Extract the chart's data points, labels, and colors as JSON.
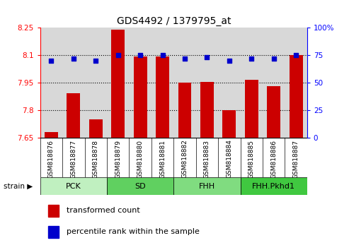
{
  "title": "GDS4492 / 1379795_at",
  "samples": [
    "GSM818876",
    "GSM818877",
    "GSM818878",
    "GSM818879",
    "GSM818880",
    "GSM818881",
    "GSM818882",
    "GSM818883",
    "GSM818884",
    "GSM818885",
    "GSM818886",
    "GSM818887"
  ],
  "transformed_counts": [
    7.68,
    7.89,
    7.75,
    8.24,
    8.09,
    8.09,
    7.95,
    7.955,
    7.8,
    7.965,
    7.93,
    8.1
  ],
  "percentile_ranks": [
    70,
    72,
    70,
    75,
    75,
    75,
    72,
    73,
    70,
    72,
    72,
    75
  ],
  "strain_groups": [
    {
      "label": "PCK",
      "start": 0,
      "end": 3,
      "color": "#c0f0c0"
    },
    {
      "label": "SD",
      "start": 3,
      "end": 6,
      "color": "#60d060"
    },
    {
      "label": "FHH",
      "start": 6,
      "end": 9,
      "color": "#80dc80"
    },
    {
      "label": "FHH.Pkhd1",
      "start": 9,
      "end": 12,
      "color": "#40c840"
    }
  ],
  "ylim_left": [
    7.65,
    8.25
  ],
  "ylim_right": [
    0,
    100
  ],
  "yticks_left": [
    7.65,
    7.8,
    7.95,
    8.1,
    8.25
  ],
  "yticks_left_labels": [
    "7.65",
    "7.8",
    "7.95",
    "8.1",
    "8.25"
  ],
  "yticks_right": [
    0,
    25,
    50,
    75,
    100
  ],
  "yticks_right_labels": [
    "0",
    "25",
    "50",
    "75",
    "100%"
  ],
  "bar_color": "#cc0000",
  "dot_color": "#0000cc",
  "bar_width": 0.6,
  "background_color": "#ffffff",
  "plot_bg_color": "#d8d8d8",
  "tick_bg_color": "#c8c8c8",
  "legend_items": [
    "transformed count",
    "percentile rank within the sample"
  ],
  "legend_colors": [
    "#cc0000",
    "#0000cc"
  ],
  "grid_lines": [
    7.8,
    7.95,
    8.1
  ],
  "figsize": [
    4.93,
    3.54
  ],
  "dpi": 100
}
